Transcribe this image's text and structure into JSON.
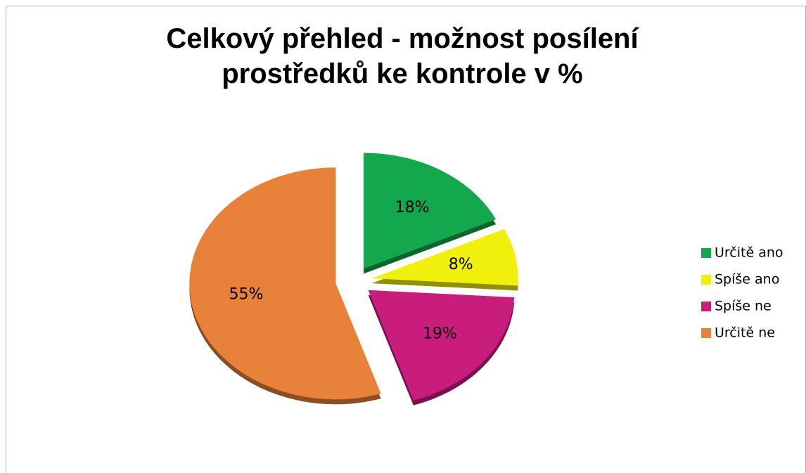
{
  "chart_data": {
    "type": "pie",
    "title": "Celkový přehled - možnost posílení prostředků ke kontrole v %",
    "categories": [
      "Určitě ano",
      "Spíše ano",
      "Spíše ne",
      "Určitě ne"
    ],
    "values": [
      18,
      8,
      19,
      55
    ],
    "value_labels": [
      "18%",
      "8%",
      "19%",
      "55%"
    ],
    "colors": [
      "#14a84e",
      "#f0f00c",
      "#c91d7d",
      "#e8813a"
    ],
    "legend": "right"
  }
}
